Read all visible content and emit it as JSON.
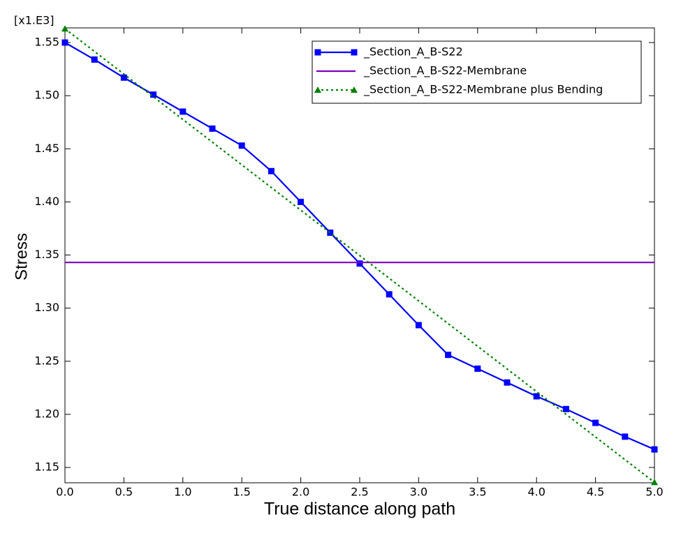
{
  "chart_data": {
    "type": "line",
    "x_label": "True distance along path",
    "y_label": "Stress",
    "y_multiplier": "[x1.E3]",
    "xlim": [
      0,
      5
    ],
    "ylim": [
      1.1356,
      1.5638
    ],
    "xticks": [
      {
        "value": 0,
        "label": "0.0"
      },
      0.5,
      {
        "value": 1,
        "label": "1.0"
      },
      1.5,
      {
        "value": 2,
        "label": "2.0"
      },
      2.5,
      {
        "value": 3,
        "label": "3.0"
      },
      3.5,
      {
        "value": 4,
        "label": "4.0"
      },
      4.5,
      {
        "value": 5,
        "label": "5.0"
      }
    ],
    "yticks": [
      1.15,
      {
        "value": 1.2,
        "label": "1.20"
      },
      1.25,
      {
        "value": 1.3,
        "label": "1.30"
      },
      1.35,
      {
        "value": 1.4,
        "label": "1.40"
      },
      1.45,
      {
        "value": 1.5,
        "label": "1.50"
      },
      1.55
    ],
    "legend": "upper right",
    "series": [
      {
        "name": "_Section_A_B-S22",
        "color": "#0000ff",
        "marker": "square",
        "dash": "solid",
        "x": [
          0,
          0.25,
          0.5,
          0.75,
          1,
          1.25,
          1.5,
          1.75,
          2,
          2.25,
          2.5,
          2.75,
          3,
          3.25,
          3.5,
          3.75,
          4,
          4.25,
          4.5,
          4.75,
          5
        ],
        "values": [
          1.55,
          1.534,
          1.517,
          1.501,
          1.485,
          1.469,
          1.453,
          1.429,
          1.4,
          1.371,
          1.342,
          1.313,
          1.284,
          1.256,
          1.243,
          1.23,
          1.217,
          1.205,
          1.192,
          1.179,
          1.167
        ]
      },
      {
        "name": "_Section_A_B-S22-Membrane",
        "color": "#7f00bf",
        "marker": "none",
        "dash": "solid",
        "x": [
          0,
          5
        ],
        "values": [
          1.343,
          1.343
        ]
      },
      {
        "name": "_Section_A_B-S22-Membrane plus Bending",
        "color": "#008000",
        "marker": "triangle",
        "dash": "dotted",
        "x": [
          0,
          5
        ],
        "values": [
          1.563,
          1.136
        ]
      }
    ]
  }
}
